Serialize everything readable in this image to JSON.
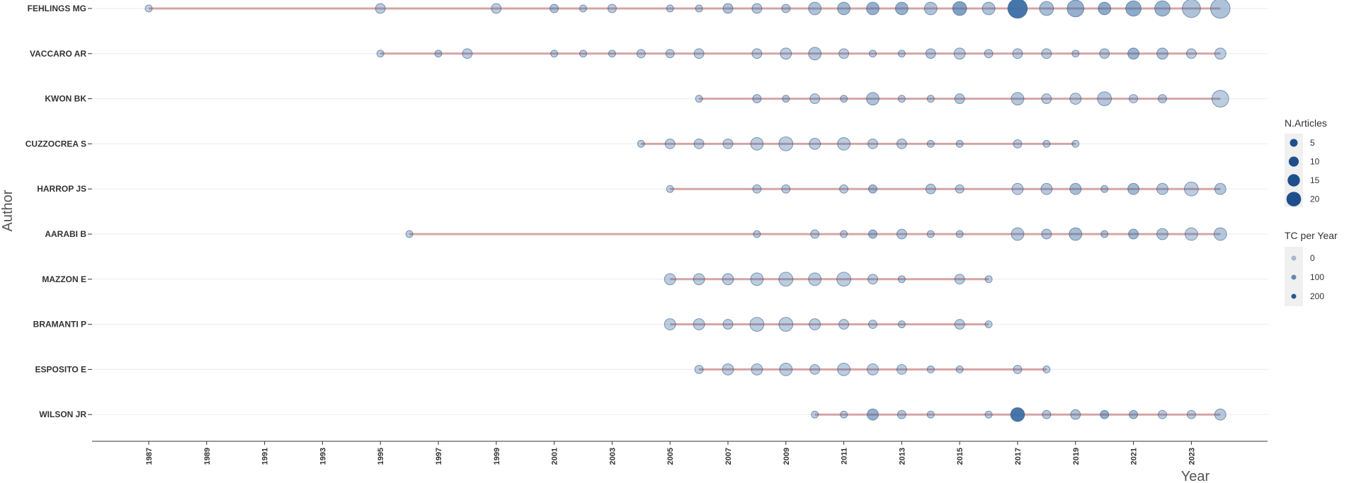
{
  "chart_data": {
    "type": "scatter",
    "subtype": "author-production-over-time",
    "xlabel": "Year",
    "ylabel": "Author",
    "x_ticks": [
      "1987",
      "1989",
      "1991",
      "1993",
      "1995",
      "1997",
      "1999",
      "2001",
      "2003",
      "2005",
      "2007",
      "2009",
      "2011",
      "2013",
      "2015",
      "2017",
      "2019",
      "2021",
      "2023"
    ],
    "xlim": [
      1987,
      2024
    ],
    "grid": "horizontal",
    "legend_placement": "right",
    "colors": {
      "point": "#3b6ea5",
      "line": "#c98a8a",
      "grid": "#ebebeb"
    },
    "legend_size": {
      "title": "N.Articles",
      "values": [
        5,
        10,
        15,
        20
      ]
    },
    "legend_color": {
      "title": "TC per Year",
      "values": [
        0,
        100,
        200
      ]
    },
    "authors": [
      {
        "name": "FEHLINGS MG",
        "first_year": 1987,
        "last_year": 2024,
        "points": [
          [
            1987,
            1,
            10
          ],
          [
            1995,
            3,
            20
          ],
          [
            1999,
            3,
            20
          ],
          [
            2001,
            2,
            40
          ],
          [
            2002,
            1,
            20
          ],
          [
            2003,
            2,
            20
          ],
          [
            2005,
            1,
            20
          ],
          [
            2006,
            1,
            20
          ],
          [
            2007,
            3,
            40
          ],
          [
            2008,
            3,
            30
          ],
          [
            2009,
            2,
            30
          ],
          [
            2010,
            5,
            40
          ],
          [
            2011,
            5,
            60
          ],
          [
            2012,
            5,
            80
          ],
          [
            2013,
            5,
            80
          ],
          [
            2014,
            5,
            40
          ],
          [
            2015,
            6,
            110
          ],
          [
            2016,
            5,
            40
          ],
          [
            2017,
            10,
            220
          ],
          [
            2018,
            6,
            50
          ],
          [
            2019,
            8,
            80
          ],
          [
            2020,
            5,
            90
          ],
          [
            2021,
            7,
            90
          ],
          [
            2022,
            7,
            70
          ],
          [
            2023,
            9,
            40
          ],
          [
            2024,
            10,
            40
          ]
        ]
      },
      {
        "name": "VACCARO AR",
        "first_year": 1995,
        "last_year": 2024,
        "points": [
          [
            1995,
            1,
            20
          ],
          [
            1997,
            1,
            30
          ],
          [
            1998,
            3,
            20
          ],
          [
            2001,
            1,
            20
          ],
          [
            2002,
            1,
            20
          ],
          [
            2003,
            1,
            20
          ],
          [
            2004,
            2,
            20
          ],
          [
            2005,
            2,
            20
          ],
          [
            2006,
            3,
            20
          ],
          [
            2008,
            3,
            20
          ],
          [
            2009,
            4,
            20
          ],
          [
            2010,
            5,
            30
          ],
          [
            2011,
            3,
            20
          ],
          [
            2012,
            1,
            20
          ],
          [
            2013,
            1,
            20
          ],
          [
            2014,
            3,
            30
          ],
          [
            2015,
            4,
            20
          ],
          [
            2016,
            2,
            20
          ],
          [
            2017,
            3,
            20
          ],
          [
            2018,
            3,
            20
          ],
          [
            2019,
            1,
            20
          ],
          [
            2020,
            3,
            30
          ],
          [
            2021,
            4,
            70
          ],
          [
            2022,
            4,
            40
          ],
          [
            2023,
            3,
            20
          ],
          [
            2024,
            4,
            20
          ]
        ]
      },
      {
        "name": "KWON BK",
        "first_year": 2006,
        "last_year": 2024,
        "points": [
          [
            2006,
            1,
            20
          ],
          [
            2008,
            2,
            30
          ],
          [
            2009,
            1,
            30
          ],
          [
            2010,
            3,
            20
          ],
          [
            2011,
            1,
            30
          ],
          [
            2012,
            5,
            40
          ],
          [
            2013,
            1,
            20
          ],
          [
            2014,
            1,
            20
          ],
          [
            2015,
            3,
            30
          ],
          [
            2017,
            5,
            30
          ],
          [
            2018,
            3,
            20
          ],
          [
            2019,
            4,
            20
          ],
          [
            2020,
            6,
            30
          ],
          [
            2021,
            2,
            20
          ],
          [
            2022,
            2,
            30
          ],
          [
            2024,
            8,
            20
          ]
        ]
      },
      {
        "name": "CUZZOCREA S",
        "first_year": 2004,
        "last_year": 2019,
        "points": [
          [
            2004,
            1,
            20
          ],
          [
            2005,
            3,
            20
          ],
          [
            2006,
            3,
            20
          ],
          [
            2007,
            3,
            20
          ],
          [
            2008,
            5,
            20
          ],
          [
            2009,
            6,
            20
          ],
          [
            2010,
            4,
            20
          ],
          [
            2011,
            5,
            20
          ],
          [
            2012,
            3,
            20
          ],
          [
            2013,
            3,
            20
          ],
          [
            2014,
            1,
            20
          ],
          [
            2015,
            1,
            20
          ],
          [
            2017,
            2,
            20
          ],
          [
            2018,
            1,
            20
          ],
          [
            2019,
            1,
            20
          ]
        ]
      },
      {
        "name": "HARROP JS",
        "first_year": 2005,
        "last_year": 2024,
        "points": [
          [
            2005,
            1,
            20
          ],
          [
            2008,
            2,
            20
          ],
          [
            2009,
            2,
            20
          ],
          [
            2011,
            2,
            20
          ],
          [
            2012,
            2,
            60
          ],
          [
            2014,
            3,
            30
          ],
          [
            2015,
            2,
            20
          ],
          [
            2017,
            4,
            20
          ],
          [
            2018,
            4,
            30
          ],
          [
            2019,
            4,
            50
          ],
          [
            2020,
            1,
            30
          ],
          [
            2021,
            4,
            60
          ],
          [
            2022,
            4,
            30
          ],
          [
            2023,
            6,
            20
          ],
          [
            2024,
            4,
            30
          ]
        ]
      },
      {
        "name": "AARABI B",
        "first_year": 1996,
        "last_year": 2024,
        "points": [
          [
            1996,
            1,
            20
          ],
          [
            2008,
            1,
            20
          ],
          [
            2010,
            2,
            20
          ],
          [
            2011,
            1,
            20
          ],
          [
            2012,
            2,
            60
          ],
          [
            2013,
            3,
            30
          ],
          [
            2014,
            1,
            20
          ],
          [
            2015,
            1,
            20
          ],
          [
            2017,
            5,
            30
          ],
          [
            2018,
            3,
            30
          ],
          [
            2019,
            5,
            50
          ],
          [
            2020,
            1,
            30
          ],
          [
            2021,
            3,
            60
          ],
          [
            2022,
            4,
            30
          ],
          [
            2023,
            5,
            20
          ],
          [
            2024,
            5,
            30
          ]
        ]
      },
      {
        "name": "MAZZON E",
        "first_year": 2005,
        "last_year": 2016,
        "points": [
          [
            2005,
            4,
            20
          ],
          [
            2006,
            4,
            20
          ],
          [
            2007,
            4,
            20
          ],
          [
            2008,
            5,
            20
          ],
          [
            2009,
            6,
            20
          ],
          [
            2010,
            5,
            20
          ],
          [
            2011,
            6,
            20
          ],
          [
            2012,
            3,
            20
          ],
          [
            2013,
            1,
            20
          ],
          [
            2015,
            3,
            20
          ],
          [
            2016,
            1,
            20
          ]
        ]
      },
      {
        "name": "BRAMANTI P",
        "first_year": 2005,
        "last_year": 2016,
        "points": [
          [
            2005,
            4,
            20
          ],
          [
            2006,
            4,
            20
          ],
          [
            2007,
            3,
            20
          ],
          [
            2008,
            6,
            20
          ],
          [
            2009,
            6,
            20
          ],
          [
            2010,
            4,
            20
          ],
          [
            2011,
            3,
            20
          ],
          [
            2012,
            2,
            20
          ],
          [
            2013,
            1,
            20
          ],
          [
            2015,
            3,
            20
          ],
          [
            2016,
            1,
            20
          ]
        ]
      },
      {
        "name": "ESPOSITO E",
        "first_year": 2006,
        "last_year": 2018,
        "points": [
          [
            2006,
            2,
            20
          ],
          [
            2007,
            4,
            20
          ],
          [
            2008,
            4,
            20
          ],
          [
            2009,
            5,
            20
          ],
          [
            2010,
            3,
            20
          ],
          [
            2011,
            5,
            20
          ],
          [
            2012,
            4,
            20
          ],
          [
            2013,
            3,
            20
          ],
          [
            2014,
            1,
            20
          ],
          [
            2015,
            1,
            20
          ],
          [
            2017,
            2,
            20
          ],
          [
            2018,
            1,
            20
          ]
        ]
      },
      {
        "name": "WILSON JR",
        "first_year": 2010,
        "last_year": 2024,
        "points": [
          [
            2010,
            1,
            20
          ],
          [
            2011,
            1,
            20
          ],
          [
            2012,
            4,
            80
          ],
          [
            2013,
            2,
            30
          ],
          [
            2014,
            1,
            20
          ],
          [
            2016,
            1,
            20
          ],
          [
            2017,
            6,
            200
          ],
          [
            2018,
            2,
            30
          ],
          [
            2019,
            3,
            40
          ],
          [
            2020,
            2,
            80
          ],
          [
            2021,
            2,
            60
          ],
          [
            2022,
            2,
            20
          ],
          [
            2023,
            2,
            20
          ],
          [
            2024,
            4,
            30
          ]
        ]
      }
    ]
  }
}
